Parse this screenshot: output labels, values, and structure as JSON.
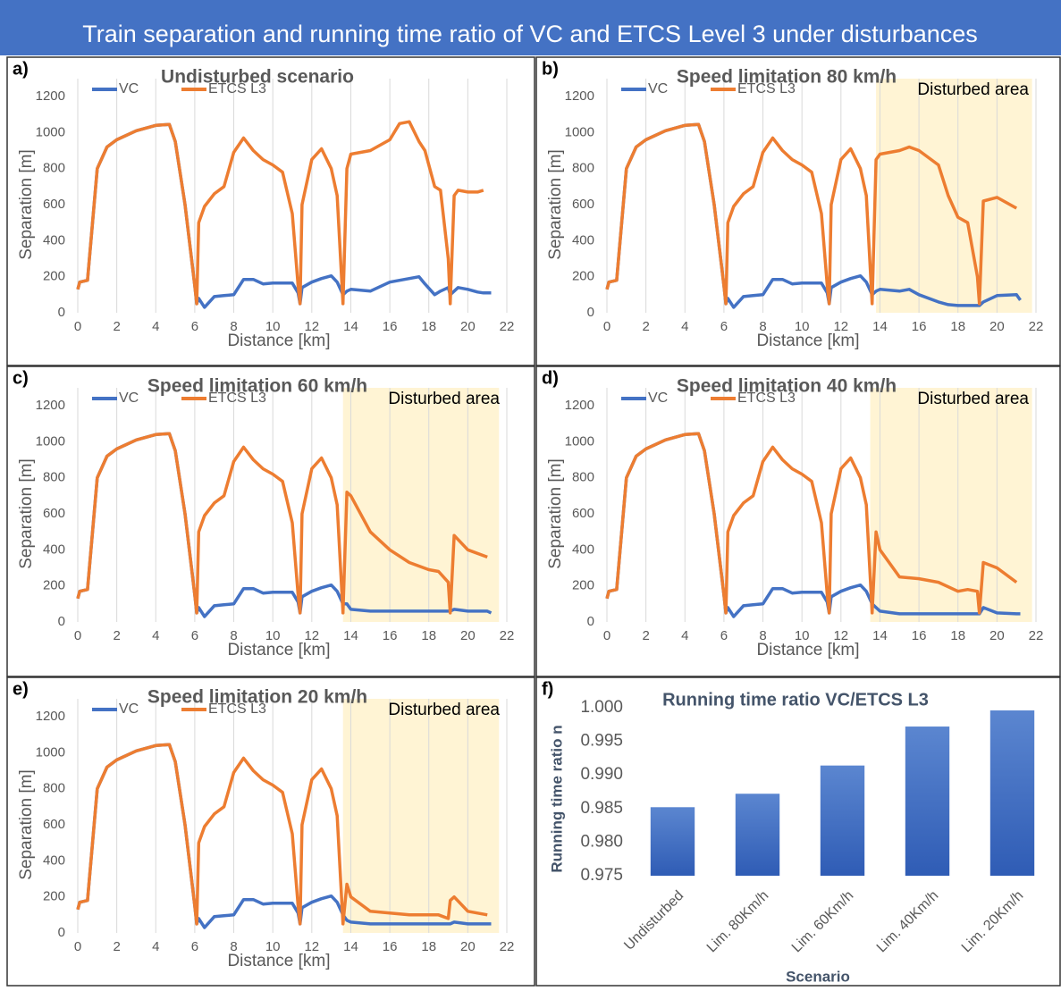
{
  "header": {
    "title": "Train separation and running time ratio of VC and ETCS Level 3 under disturbances"
  },
  "chart_data": [
    {
      "type": "line",
      "panel_label": "a)",
      "title": "Undisturbed scenario",
      "x_label": "Distance [km]",
      "y_label": "Separation [m]",
      "x": [
        0,
        0.1,
        0.5,
        1,
        1.5,
        2,
        3,
        4,
        4.7,
        5,
        5.5,
        6,
        6.1,
        6.2,
        6.5,
        7,
        7.5,
        8,
        8.5,
        9,
        9.5,
        10,
        10.5,
        11,
        11.3,
        11.4,
        11.5,
        12,
        12.5,
        13,
        13.3,
        13.6,
        13.8,
        14,
        15,
        16,
        16.5,
        17,
        17.5,
        17.8,
        18.3,
        18.6,
        19,
        19.1,
        19.3,
        19.5,
        20,
        20.5,
        20.8,
        21.2
      ],
      "series": [
        {
          "name": "VC",
          "color": "#4472c4",
          "values": [
            130,
            170,
            180,
            800,
            920,
            960,
            1010,
            1040,
            1045,
            950,
            600,
            150,
            50,
            80,
            30,
            90,
            95,
            100,
            185,
            185,
            160,
            165,
            165,
            165,
            110,
            50,
            140,
            170,
            190,
            205,
            170,
            100,
            120,
            130,
            120,
            170,
            180,
            190,
            200,
            160,
            100,
            120,
            140,
            100,
            120,
            140,
            130,
            115,
            110,
            110
          ]
        },
        {
          "name": "ETCS L3",
          "color": "#ed7d31",
          "values": [
            130,
            170,
            180,
            800,
            920,
            960,
            1010,
            1040,
            1045,
            950,
            600,
            150,
            50,
            500,
            590,
            660,
            700,
            890,
            970,
            900,
            850,
            820,
            780,
            550,
            150,
            50,
            600,
            850,
            910,
            800,
            650,
            50,
            800,
            880,
            900,
            960,
            1050,
            1060,
            950,
            900,
            700,
            680,
            300,
            50,
            650,
            680,
            670,
            670,
            680,
            null
          ]
        }
      ],
      "xlim": [
        0,
        22
      ],
      "ylim": [
        0,
        1200
      ],
      "xticks": [
        0,
        2,
        4,
        6,
        8,
        10,
        12,
        14,
        16,
        18,
        20,
        22
      ],
      "yticks": [
        0,
        200,
        400,
        600,
        800,
        1000,
        1200
      ],
      "grid": "x"
    },
    {
      "type": "line",
      "panel_label": "b)",
      "title": "Speed limitation 80 km/h",
      "x_label": "Distance [km]",
      "y_label": "Separation [m]",
      "annotation": "Disturbed area",
      "shaded_xrange": [
        13.8,
        21.8
      ],
      "x": [
        0,
        0.1,
        0.5,
        1,
        1.5,
        2,
        3,
        4,
        4.7,
        5,
        5.5,
        6,
        6.1,
        6.2,
        6.5,
        7,
        7.5,
        8,
        8.5,
        9,
        9.5,
        10,
        10.5,
        11,
        11.3,
        11.4,
        11.5,
        12,
        12.5,
        13,
        13.3,
        13.6,
        13.8,
        14,
        15,
        15.5,
        16,
        17,
        17.5,
        18,
        18.5,
        19,
        19.1,
        19.3,
        20,
        21,
        21.2
      ],
      "series": [
        {
          "name": "VC",
          "color": "#4472c4",
          "values": [
            130,
            170,
            180,
            800,
            920,
            960,
            1010,
            1040,
            1045,
            950,
            600,
            150,
            50,
            80,
            30,
            90,
            95,
            100,
            185,
            185,
            160,
            165,
            165,
            165,
            110,
            50,
            140,
            170,
            190,
            205,
            170,
            100,
            120,
            130,
            120,
            130,
            100,
            60,
            45,
            40,
            40,
            40,
            40,
            60,
            95,
            100,
            70
          ]
        },
        {
          "name": "ETCS L3",
          "color": "#ed7d31",
          "values": [
            130,
            170,
            180,
            800,
            920,
            960,
            1010,
            1040,
            1045,
            950,
            600,
            150,
            50,
            500,
            590,
            660,
            700,
            890,
            970,
            900,
            850,
            820,
            780,
            550,
            150,
            50,
            600,
            850,
            910,
            800,
            650,
            50,
            850,
            880,
            900,
            920,
            900,
            820,
            650,
            530,
            500,
            200,
            50,
            620,
            640,
            580,
            null
          ]
        }
      ],
      "xlim": [
        0,
        22
      ],
      "ylim": [
        0,
        1200
      ],
      "xticks": [
        0,
        2,
        4,
        6,
        8,
        10,
        12,
        14,
        16,
        18,
        20,
        22
      ],
      "yticks": [
        0,
        200,
        400,
        600,
        800,
        1000,
        1200
      ],
      "grid": "x"
    },
    {
      "type": "line",
      "panel_label": "c)",
      "title": "Speed limitation 60 km/h",
      "x_label": "Distance [km]",
      "y_label": "Separation [m]",
      "annotation": "Disturbed area",
      "shaded_xrange": [
        13.6,
        21.6
      ],
      "x": [
        0,
        0.1,
        0.5,
        1,
        1.5,
        2,
        3,
        4,
        4.7,
        5,
        5.5,
        6,
        6.1,
        6.2,
        6.5,
        7,
        7.5,
        8,
        8.5,
        9,
        9.5,
        10,
        10.5,
        11,
        11.3,
        11.4,
        11.5,
        12,
        12.5,
        13,
        13.3,
        13.6,
        13.8,
        14,
        15,
        16,
        17,
        18,
        18.5,
        19,
        19.1,
        19.3,
        20,
        21,
        21.2
      ],
      "series": [
        {
          "name": "VC",
          "color": "#4472c4",
          "values": [
            130,
            170,
            180,
            800,
            920,
            960,
            1010,
            1040,
            1045,
            950,
            600,
            150,
            50,
            80,
            30,
            90,
            95,
            100,
            185,
            185,
            160,
            165,
            165,
            165,
            110,
            50,
            140,
            170,
            190,
            205,
            170,
            100,
            100,
            70,
            60,
            60,
            60,
            60,
            60,
            60,
            60,
            70,
            60,
            60,
            50
          ]
        },
        {
          "name": "ETCS L3",
          "color": "#ed7d31",
          "values": [
            130,
            170,
            180,
            800,
            920,
            960,
            1010,
            1040,
            1045,
            950,
            600,
            150,
            50,
            500,
            590,
            660,
            700,
            890,
            970,
            900,
            850,
            820,
            780,
            550,
            150,
            50,
            600,
            850,
            910,
            800,
            650,
            50,
            720,
            700,
            500,
            400,
            330,
            290,
            280,
            220,
            50,
            480,
            400,
            360,
            null
          ]
        }
      ],
      "xlim": [
        0,
        22
      ],
      "ylim": [
        0,
        1200
      ],
      "xticks": [
        0,
        2,
        4,
        6,
        8,
        10,
        12,
        14,
        16,
        18,
        20,
        22
      ],
      "yticks": [
        0,
        200,
        400,
        600,
        800,
        1000,
        1200
      ],
      "grid": "x"
    },
    {
      "type": "line",
      "panel_label": "d)",
      "title": "Speed limitation 40 km/h",
      "x_label": "Distance [km]",
      "y_label": "Separation [m]",
      "annotation": "Disturbed area",
      "shaded_xrange": [
        13.5,
        21.8
      ],
      "x": [
        0,
        0.1,
        0.5,
        1,
        1.5,
        2,
        3,
        4,
        4.7,
        5,
        5.5,
        6,
        6.1,
        6.2,
        6.5,
        7,
        7.5,
        8,
        8.5,
        9,
        9.5,
        10,
        10.5,
        11,
        11.3,
        11.4,
        11.5,
        12,
        12.5,
        13,
        13.3,
        13.6,
        13.8,
        14,
        15,
        16,
        17,
        18,
        18.5,
        19,
        19.1,
        19.3,
        20,
        21,
        21.2
      ],
      "series": [
        {
          "name": "VC",
          "color": "#4472c4",
          "values": [
            130,
            170,
            180,
            800,
            920,
            960,
            1010,
            1040,
            1045,
            950,
            600,
            150,
            50,
            80,
            30,
            90,
            95,
            100,
            185,
            185,
            160,
            165,
            165,
            165,
            110,
            50,
            140,
            170,
            190,
            205,
            170,
            100,
            80,
            60,
            45,
            45,
            45,
            45,
            45,
            45,
            45,
            80,
            50,
            45,
            45
          ]
        },
        {
          "name": "ETCS L3",
          "color": "#ed7d31",
          "values": [
            130,
            170,
            180,
            800,
            920,
            960,
            1010,
            1040,
            1045,
            950,
            600,
            150,
            50,
            500,
            590,
            660,
            700,
            890,
            970,
            900,
            850,
            820,
            780,
            550,
            150,
            50,
            600,
            850,
            910,
            800,
            650,
            50,
            500,
            400,
            250,
            240,
            220,
            170,
            180,
            170,
            50,
            330,
            300,
            220,
            null
          ]
        }
      ],
      "xlim": [
        0,
        22
      ],
      "ylim": [
        0,
        1200
      ],
      "xticks": [
        0,
        2,
        4,
        6,
        8,
        10,
        12,
        14,
        16,
        18,
        20,
        22
      ],
      "yticks": [
        0,
        200,
        400,
        600,
        800,
        1000,
        1200
      ],
      "grid": "x"
    },
    {
      "type": "line",
      "panel_label": "e)",
      "title": "Speed limitation 20 km/h",
      "x_label": "Distance [km]",
      "y_label": "Separation [m]",
      "annotation": "Disturbed area",
      "shaded_xrange": [
        13.6,
        21.6
      ],
      "x": [
        0,
        0.1,
        0.5,
        1,
        1.5,
        2,
        3,
        4,
        4.7,
        5,
        5.5,
        6,
        6.1,
        6.2,
        6.5,
        7,
        7.5,
        8,
        8.5,
        9,
        9.5,
        10,
        10.5,
        11,
        11.3,
        11.4,
        11.5,
        12,
        12.5,
        13,
        13.3,
        13.6,
        13.8,
        14,
        15,
        16,
        17,
        18,
        18.5,
        19,
        19.1,
        19.3,
        20,
        21,
        21.2
      ],
      "series": [
        {
          "name": "VC",
          "color": "#4472c4",
          "values": [
            130,
            170,
            180,
            800,
            920,
            960,
            1010,
            1040,
            1045,
            950,
            600,
            150,
            50,
            80,
            30,
            90,
            95,
            100,
            185,
            185,
            160,
            165,
            165,
            165,
            110,
            50,
            140,
            170,
            190,
            205,
            170,
            100,
            70,
            60,
            50,
            50,
            50,
            50,
            50,
            50,
            50,
            60,
            50,
            50,
            50
          ]
        },
        {
          "name": "ETCS L3",
          "color": "#ed7d31",
          "values": [
            130,
            170,
            180,
            800,
            920,
            960,
            1010,
            1040,
            1045,
            950,
            600,
            150,
            50,
            500,
            590,
            660,
            700,
            890,
            970,
            900,
            850,
            820,
            780,
            550,
            150,
            50,
            600,
            850,
            910,
            800,
            650,
            50,
            270,
            200,
            120,
            110,
            100,
            100,
            100,
            80,
            180,
            200,
            120,
            100,
            null
          ]
        }
      ],
      "xlim": [
        0,
        22
      ],
      "ylim": [
        0,
        1200
      ],
      "xticks": [
        0,
        2,
        4,
        6,
        8,
        10,
        12,
        14,
        16,
        18,
        20,
        22
      ],
      "yticks": [
        0,
        200,
        400,
        600,
        800,
        1000,
        1200
      ],
      "grid": "x"
    },
    {
      "type": "bar",
      "panel_label": "f)",
      "title": "Running time ratio VC/ETCS L3",
      "x_label": "Scenario",
      "y_label": "Running time ratio n",
      "categories": [
        "Undisturbed",
        "Lim. 80Km/h",
        "Lim. 60Km/h",
        "Lim. 40Km/h",
        "Lim. 20Km/h"
      ],
      "values": [
        0.9852,
        0.9872,
        0.9914,
        0.9972,
        0.9996
      ],
      "color": "#4472c4",
      "ylim": [
        0.975,
        1.0
      ],
      "yticks": [
        {
          "value": 0.975,
          "label": "0.975"
        },
        {
          "value": 0.98,
          "label": "0.980"
        },
        {
          "value": 0.985,
          "label": "0.985"
        },
        {
          "value": 0.99,
          "label": "0.990"
        },
        {
          "value": 0.995,
          "label": "0.995"
        },
        {
          "value": 1.0,
          "label": "1.000"
        }
      ]
    }
  ]
}
